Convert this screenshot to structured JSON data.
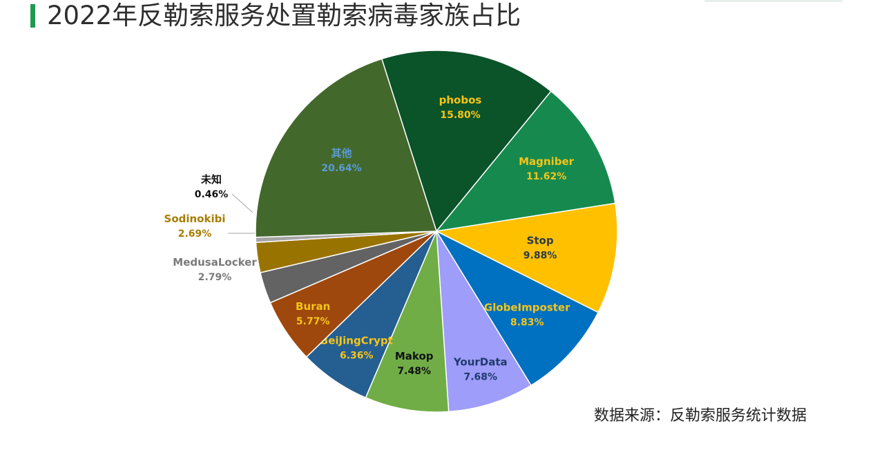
{
  "page": {
    "title": "2022年反勒索服务处置勒索病毒家族占比",
    "source_note": "数据来源：反勒索服务统计数据"
  },
  "chart_data": {
    "type": "pie",
    "title": "2022年反勒索服务处置勒索病毒家族占比",
    "slices": [
      {
        "label": "phobos",
        "value_text": "15.80%",
        "value": 15.8,
        "color": "#0b5329",
        "label_color": "#f5c518"
      },
      {
        "label": "Magniber",
        "value_text": "11.62%",
        "value": 11.62,
        "color": "#168a4e",
        "label_color": "#f5c518"
      },
      {
        "label": "Stop",
        "value_text": "9.88%",
        "value": 9.88,
        "color": "#ffc000",
        "label_color": "#2a3a4a"
      },
      {
        "label": "GlobeImposter",
        "value_text": "8.83%",
        "value": 8.83,
        "color": "#0070c0",
        "label_color": "#f5c518"
      },
      {
        "label": "YourData",
        "value_text": "7.68%",
        "value": 7.68,
        "color": "#9e9dfa",
        "label_color": "#1f3a6b"
      },
      {
        "label": "Makop",
        "value_text": "7.48%",
        "value": 7.48,
        "color": "#70ad47",
        "label_color": "#111111"
      },
      {
        "label": "BeiJingCrypt",
        "value_text": "6.36%",
        "value": 6.36,
        "color": "#255e91",
        "label_color": "#f5c518"
      },
      {
        "label": "Buran",
        "value_text": "5.77%",
        "value": 5.77,
        "color": "#9e480e",
        "label_color": "#f5c518"
      },
      {
        "label": "MedusaLocker",
        "value_text": "2.79%",
        "value": 2.79,
        "color": "#636363",
        "label_color": "#7a7a7a"
      },
      {
        "label": "Sodinokibi",
        "value_text": "2.69%",
        "value": 2.69,
        "color": "#997300",
        "label_color": "#a77d00"
      },
      {
        "label": "未知",
        "value_text": "0.46%",
        "value": 0.46,
        "color": "#a5a5a5",
        "label_color": "#111111"
      },
      {
        "label": "其他",
        "value_text": "20.64%",
        "value": 20.64,
        "color": "#43682b",
        "label_color": "#5b9bd5"
      }
    ]
  }
}
